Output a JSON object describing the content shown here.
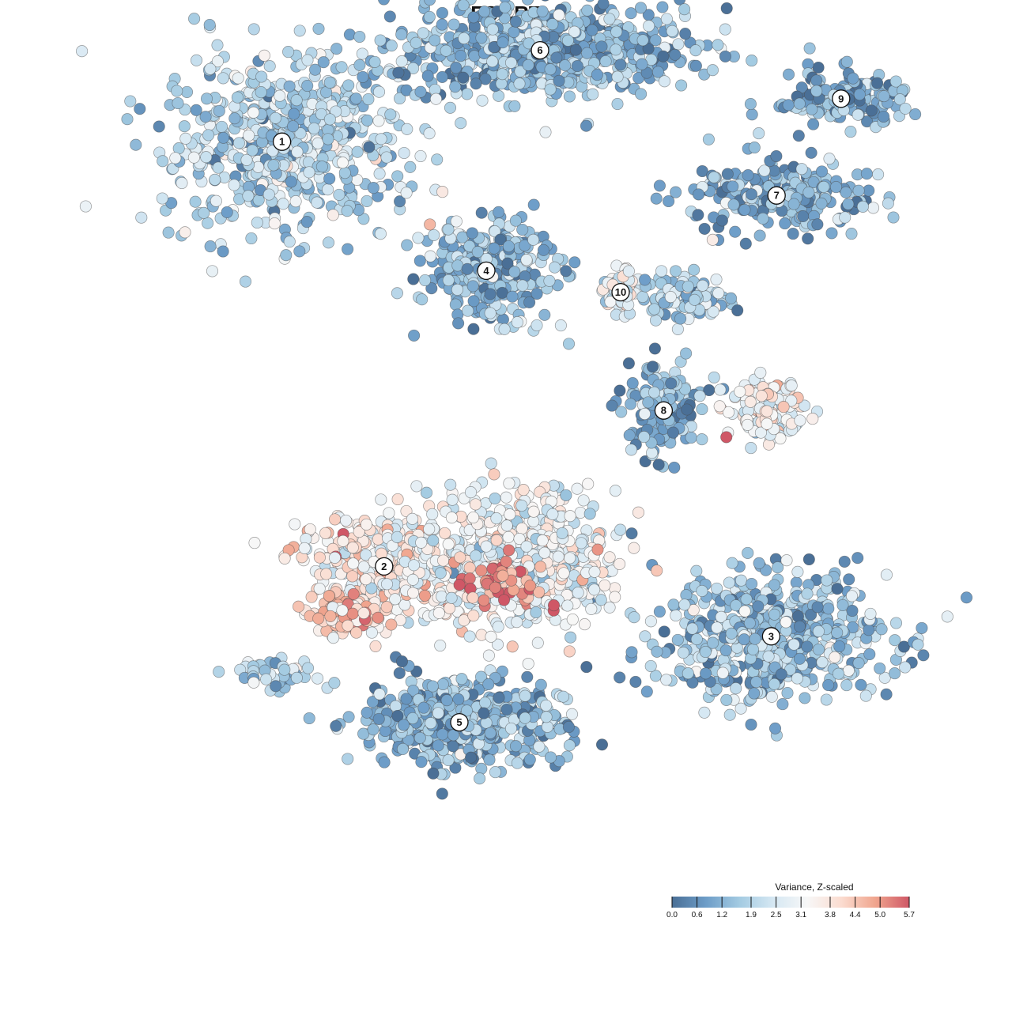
{
  "title": "FCGRT",
  "chart_data": {
    "type": "scatter",
    "title": "FCGRT",
    "xlabel": "",
    "ylabel": "",
    "grid": false,
    "legend_placement": "bottom-right",
    "color_scale": {
      "title": "Variance, Z-scaled",
      "min": 0.0,
      "max": 5.7,
      "ticks": [
        "0.0",
        "0.6",
        "1.2",
        "1.9",
        "2.5",
        "3.1",
        "3.8",
        "4.4",
        "5.0",
        "5.7"
      ],
      "stops": [
        "#4a6f96",
        "#6d9dc8",
        "#a4cbe2",
        "#d6e8f3",
        "#f7f7f7",
        "#fbdcd0",
        "#f0a58e",
        "#cf5766"
      ]
    },
    "clusters": [
      {
        "label": "1",
        "x": -3.8,
        "y": 5.6,
        "spread": [
          2.2,
          1.6
        ],
        "n": 620,
        "level": 1.9
      },
      {
        "label": "2",
        "x": -1.9,
        "y": -2.3,
        "spread": [
          1.6,
          1.0
        ],
        "n": 330,
        "level": 3.4
      },
      {
        "label": "3",
        "x": 5.3,
        "y": -3.6,
        "spread": [
          2.2,
          1.2
        ],
        "n": 560,
        "level": 1.5
      },
      {
        "label": "4",
        "x": 0.0,
        "y": 3.2,
        "spread": [
          1.2,
          0.9
        ],
        "n": 330,
        "level": 1.4
      },
      {
        "label": "5",
        "x": -0.5,
        "y": -5.2,
        "spread": [
          1.9,
          0.8
        ],
        "n": 520,
        "level": 1.3
      },
      {
        "label": "6",
        "x": 1.0,
        "y": 7.3,
        "spread": [
          2.8,
          0.9
        ],
        "n": 640,
        "level": 1.3
      },
      {
        "label": "7",
        "x": 5.4,
        "y": 4.6,
        "spread": [
          1.6,
          0.7
        ],
        "n": 220,
        "level": 1.2
      },
      {
        "label": "8",
        "x": 3.3,
        "y": 0.6,
        "spread": [
          0.8,
          0.9
        ],
        "n": 150,
        "level": 1.1
      },
      {
        "label": "9",
        "x": 6.6,
        "y": 6.4,
        "spread": [
          1.2,
          0.5
        ],
        "n": 150,
        "level": 1.0
      },
      {
        "label": "10",
        "x": 2.5,
        "y": 2.8,
        "spread": [
          0.3,
          0.4
        ],
        "n": 60,
        "level": 3.0
      },
      {
        "label": "",
        "x": 0.6,
        "y": -2.2,
        "spread": [
          1.8,
          1.3
        ],
        "n": 620,
        "level": 3.0
      },
      {
        "label": "",
        "x": 5.2,
        "y": 0.6,
        "spread": [
          0.7,
          0.5
        ],
        "n": 140,
        "level": 3.2
      },
      {
        "label": "",
        "x": -2.6,
        "y": -3.2,
        "spread": [
          0.6,
          0.4
        ],
        "n": 110,
        "level": 4.2
      },
      {
        "label": "",
        "x": 0.3,
        "y": -2.6,
        "spread": [
          0.8,
          0.5
        ],
        "n": 45,
        "level": 5.3
      },
      {
        "label": "",
        "x": -3.9,
        "y": -4.3,
        "spread": [
          0.7,
          0.3
        ],
        "n": 45,
        "level": 1.9
      },
      {
        "label": "",
        "x": 3.7,
        "y": 2.7,
        "spread": [
          0.8,
          0.4
        ],
        "n": 110,
        "level": 1.8
      }
    ]
  }
}
